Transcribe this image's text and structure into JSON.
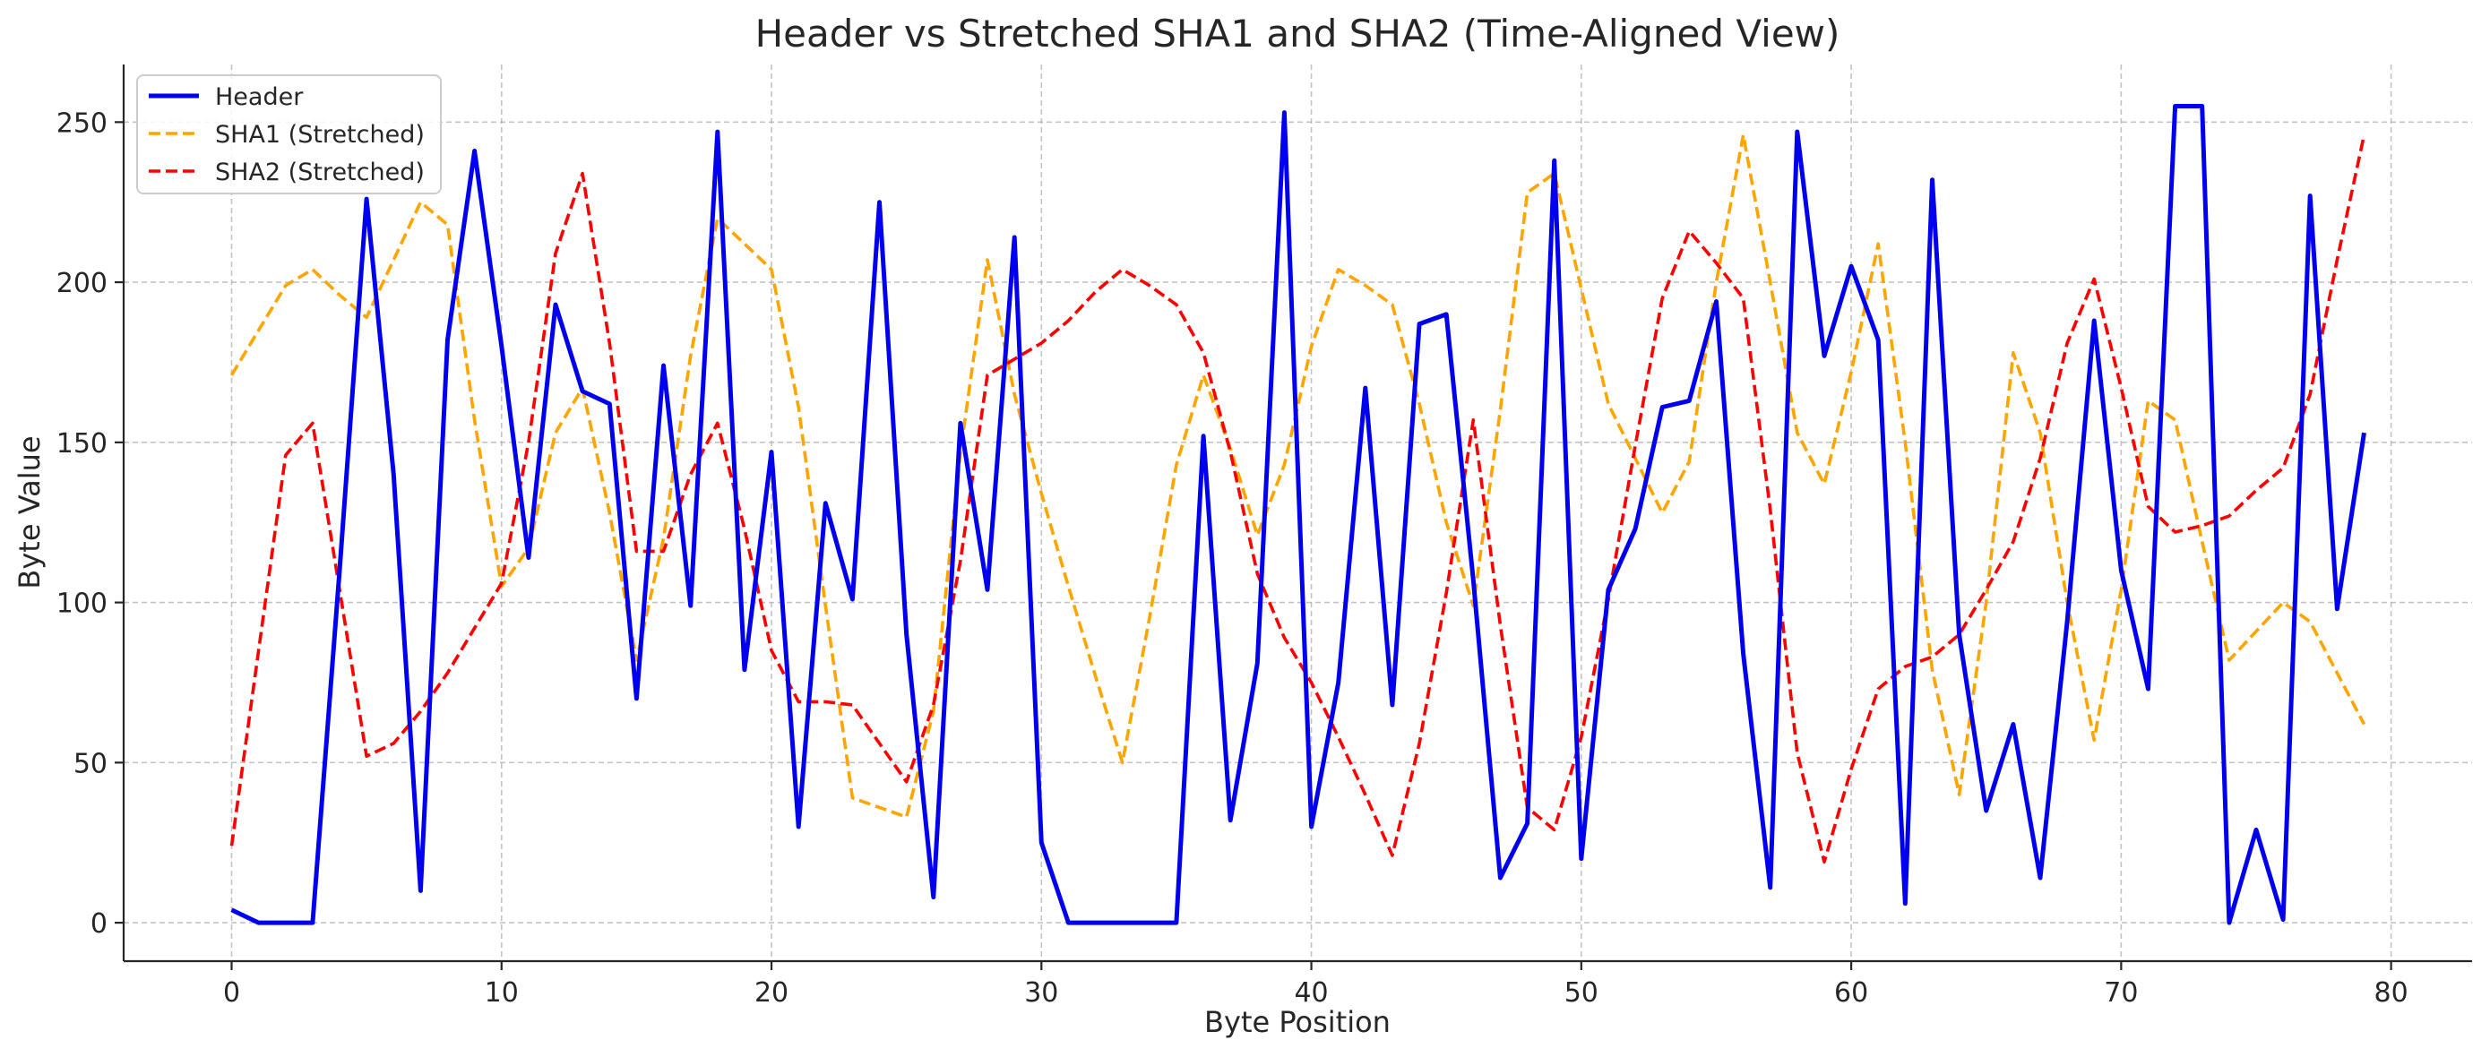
{
  "chart_data": {
    "type": "line",
    "title": "Header vs Stretched SHA1 and SHA2 (Time-Aligned View)",
    "xlabel": "Byte Position",
    "ylabel": "Byte Value",
    "xlim": [
      -4,
      83
    ],
    "ylim": [
      -12,
      268
    ],
    "xticks": [
      0,
      10,
      20,
      30,
      40,
      50,
      60,
      70,
      80
    ],
    "yticks": [
      0,
      50,
      100,
      150,
      200,
      250
    ],
    "grid": true,
    "legend_position": "top-left",
    "series": [
      {
        "name": "Header",
        "color": "#0000ee",
        "style": "solid",
        "x": [
          0,
          1,
          2,
          3,
          4,
          5,
          6,
          7,
          8,
          9,
          10,
          11,
          12,
          13,
          14,
          15,
          16,
          17,
          18,
          19,
          20,
          21,
          22,
          23,
          24,
          25,
          26,
          27,
          28,
          29,
          30,
          31,
          32,
          33,
          34,
          35,
          36,
          37,
          38,
          39,
          40,
          41,
          42,
          43,
          44,
          45,
          46,
          47,
          48,
          49,
          50,
          51,
          52,
          53,
          54,
          55,
          56,
          57,
          58,
          59,
          60,
          61,
          62,
          63,
          64,
          65,
          66,
          67,
          68,
          69,
          70,
          71,
          72,
          73,
          74,
          75,
          76,
          77,
          78,
          79
        ],
        "values": [
          4,
          0,
          0,
          0,
          110,
          226,
          140,
          10,
          182,
          241,
          180,
          114,
          193,
          166,
          162,
          70,
          174,
          99,
          247,
          79,
          147,
          30,
          131,
          101,
          225,
          90,
          8,
          156,
          104,
          214,
          25,
          0,
          0,
          0,
          0,
          0,
          152,
          32,
          81,
          253,
          30,
          75,
          167,
          68,
          187,
          190,
          107,
          14,
          31,
          238,
          20,
          104,
          123,
          161,
          163,
          194,
          84,
          11,
          247,
          177,
          205,
          182,
          6,
          232,
          90,
          35,
          62,
          14,
          94,
          188,
          110,
          73,
          255,
          255,
          0,
          29,
          1,
          227,
          98,
          153
        ]
      },
      {
        "name": "SHA1 (Stretched)",
        "color": "#ffa500",
        "style": "dashed",
        "x": [
          0,
          1,
          2,
          3,
          4,
          5,
          6,
          7,
          8,
          9,
          10,
          11,
          12,
          13,
          14,
          15,
          16,
          17,
          18,
          19,
          20,
          21,
          22,
          23,
          24,
          25,
          26,
          27,
          28,
          29,
          30,
          31,
          32,
          33,
          34,
          35,
          36,
          37,
          38,
          39,
          40,
          41,
          42,
          43,
          44,
          45,
          46,
          47,
          48,
          49,
          50,
          51,
          52,
          53,
          54,
          55,
          56,
          57,
          58,
          59,
          60,
          61,
          62,
          63,
          64,
          65,
          66,
          67,
          68,
          69,
          70,
          71,
          72,
          73,
          74,
          75,
          76,
          77,
          78,
          79
        ],
        "values": [
          171,
          185,
          199,
          204,
          196,
          189,
          207,
          225,
          218,
          157,
          105,
          117,
          153,
          167,
          128,
          82,
          120,
          177,
          220,
          212,
          204,
          161,
          99,
          39,
          36,
          33,
          66,
          147,
          207,
          165,
          134,
          105,
          77,
          50,
          95,
          143,
          171,
          148,
          121,
          143,
          180,
          204,
          199,
          193,
          162,
          125,
          99,
          160,
          228,
          234,
          198,
          162,
          145,
          128,
          144,
          200,
          246,
          200,
          153,
          137,
          172,
          212,
          150,
          79,
          40,
          100,
          178,
          153,
          100,
          57,
          104,
          163,
          157,
          119,
          82,
          91,
          100,
          94,
          78,
          62
        ]
      },
      {
        "name": "SHA2 (Stretched)",
        "color": "#ff0000",
        "style": "dashed",
        "x": [
          0,
          1,
          2,
          3,
          4,
          5,
          6,
          7,
          8,
          9,
          10,
          11,
          12,
          13,
          14,
          15,
          16,
          17,
          18,
          19,
          20,
          21,
          22,
          23,
          24,
          25,
          26,
          27,
          28,
          29,
          30,
          31,
          32,
          33,
          34,
          35,
          36,
          37,
          38,
          39,
          40,
          41,
          42,
          43,
          44,
          45,
          46,
          47,
          48,
          49,
          50,
          51,
          52,
          53,
          54,
          55,
          56,
          57,
          58,
          59,
          60,
          61,
          62,
          63,
          64,
          65,
          66,
          67,
          68,
          69,
          70,
          71,
          72,
          73,
          74,
          75,
          76,
          77,
          78,
          79
        ],
        "values": [
          24,
          85,
          146,
          156,
          104,
          52,
          56,
          66,
          78,
          92,
          106,
          150,
          209,
          234,
          181,
          116,
          116,
          140,
          156,
          123,
          85,
          69,
          69,
          68,
          56,
          44,
          68,
          113,
          171,
          176,
          181,
          188,
          197,
          204,
          199,
          193,
          178,
          147,
          109,
          89,
          75,
          58,
          40,
          21,
          56,
          103,
          157,
          93,
          36,
          29,
          58,
          101,
          149,
          195,
          216,
          206,
          195,
          129,
          53,
          19,
          48,
          73,
          80,
          83,
          90,
          104,
          119,
          145,
          181,
          201,
          167,
          130,
          122,
          124,
          127,
          135,
          142,
          165,
          207,
          246
        ]
      }
    ]
  }
}
